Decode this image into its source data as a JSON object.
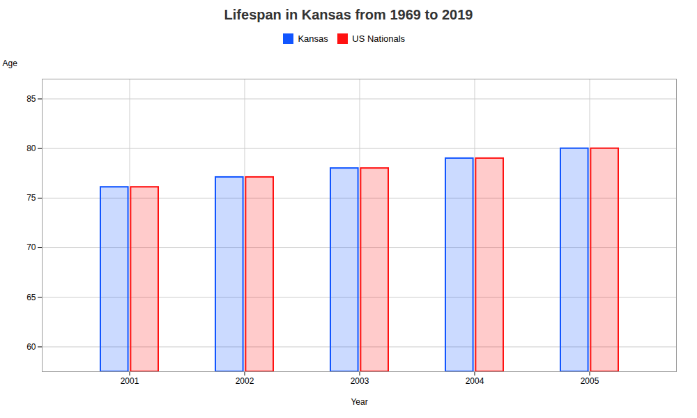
{
  "chart_data": {
    "type": "bar",
    "title": "Lifespan in Kansas from 1969 to 2019",
    "xlabel": "Year",
    "ylabel": "Age",
    "categories": [
      "2001",
      "2002",
      "2003",
      "2004",
      "2005"
    ],
    "series": [
      {
        "name": "Kansas",
        "color": "#1155ff",
        "values": [
          76.1,
          77.1,
          78.0,
          79.0,
          80.0
        ]
      },
      {
        "name": "US Nationals",
        "color": "#ff1111",
        "values": [
          76.1,
          77.1,
          78.0,
          79.0,
          80.0
        ]
      }
    ],
    "ylim": [
      57.5,
      87
    ],
    "yticks": [
      60,
      65,
      70,
      75,
      80,
      85
    ],
    "grid": true,
    "legend": "top"
  }
}
